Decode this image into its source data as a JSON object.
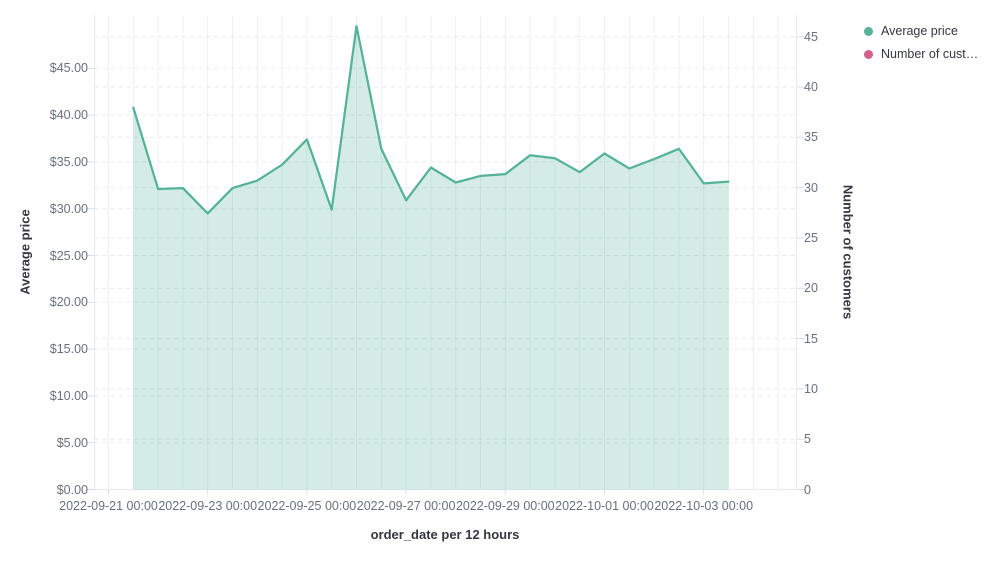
{
  "chart_data": {
    "type": "area",
    "title": "",
    "interval": "12 hours",
    "x_axis": {
      "label": "order_date per 12 hours",
      "tick_labels": [
        "2022-09-21 00:00",
        "2022-09-23 00:00",
        "2022-09-25 00:00",
        "2022-09-27 00:00",
        "2022-09-29 00:00",
        "2022-10-01 00:00",
        "2022-10-03 00:00"
      ]
    },
    "y_axis_left": {
      "label": "Average price",
      "tick_labels": [
        "$0.00",
        "$5.00",
        "$10.00",
        "$15.00",
        "$20.00",
        "$25.00",
        "$30.00",
        "$35.00",
        "$40.00",
        "$45.00"
      ],
      "tick_values": [
        0,
        5,
        10,
        15,
        20,
        25,
        30,
        35,
        40,
        45
      ],
      "range": [
        0,
        50.7
      ],
      "grid": "dashed"
    },
    "y_axis_right": {
      "label": "Number of customers",
      "tick_labels": [
        "0",
        "5",
        "10",
        "15",
        "20",
        "25",
        "30",
        "35",
        "40",
        "45"
      ],
      "tick_values": [
        0,
        5,
        10,
        15,
        20,
        25,
        30,
        35,
        40,
        45
      ],
      "range": [
        0,
        47.2
      ],
      "grid": "dashed"
    },
    "series": [
      {
        "name": "Average price",
        "type": "area",
        "color": "#54b399",
        "axis": "left",
        "x": [
          "2022-09-21 12:00",
          "2022-09-22 00:00",
          "2022-09-22 12:00",
          "2022-09-23 00:00",
          "2022-09-23 12:00",
          "2022-09-24 00:00",
          "2022-09-24 12:00",
          "2022-09-25 00:00",
          "2022-09-25 12:00",
          "2022-09-26 00:00",
          "2022-09-26 12:00",
          "2022-09-27 00:00",
          "2022-09-27 12:00",
          "2022-09-28 00:00",
          "2022-09-28 12:00",
          "2022-09-29 00:00",
          "2022-09-29 12:00",
          "2022-09-30 00:00",
          "2022-09-30 12:00",
          "2022-10-01 00:00",
          "2022-10-01 12:00",
          "2022-10-02 00:00",
          "2022-10-02 12:00",
          "2022-10-03 00:00",
          "2022-10-03 12:00"
        ],
        "values": [
          40.8,
          32.1,
          32.2,
          29.5,
          32.2,
          33.0,
          34.7,
          37.4,
          29.9,
          49.5,
          36.4,
          30.9,
          34.4,
          32.8,
          33.5,
          33.7,
          35.7,
          35.4,
          33.9,
          35.9,
          34.3,
          35.3,
          36.4,
          32.7,
          32.9
        ]
      }
    ],
    "legend": {
      "position": "top-right",
      "items": [
        {
          "label": "Average price",
          "color": "#54b399"
        },
        {
          "label": "Number of cust…",
          "color": "#d36086"
        }
      ]
    }
  },
  "colors": {
    "series_green": "#54b399",
    "series_pink": "#d36086",
    "tick_label": "#69707d",
    "axis_title": "#343741",
    "grid_vertical": "#edf0f4",
    "grid_horizontal": "#e6e9ef",
    "plot_border": "#e6e9ef",
    "tick_mark": "#d7dce4",
    "background": "#ffffff"
  }
}
